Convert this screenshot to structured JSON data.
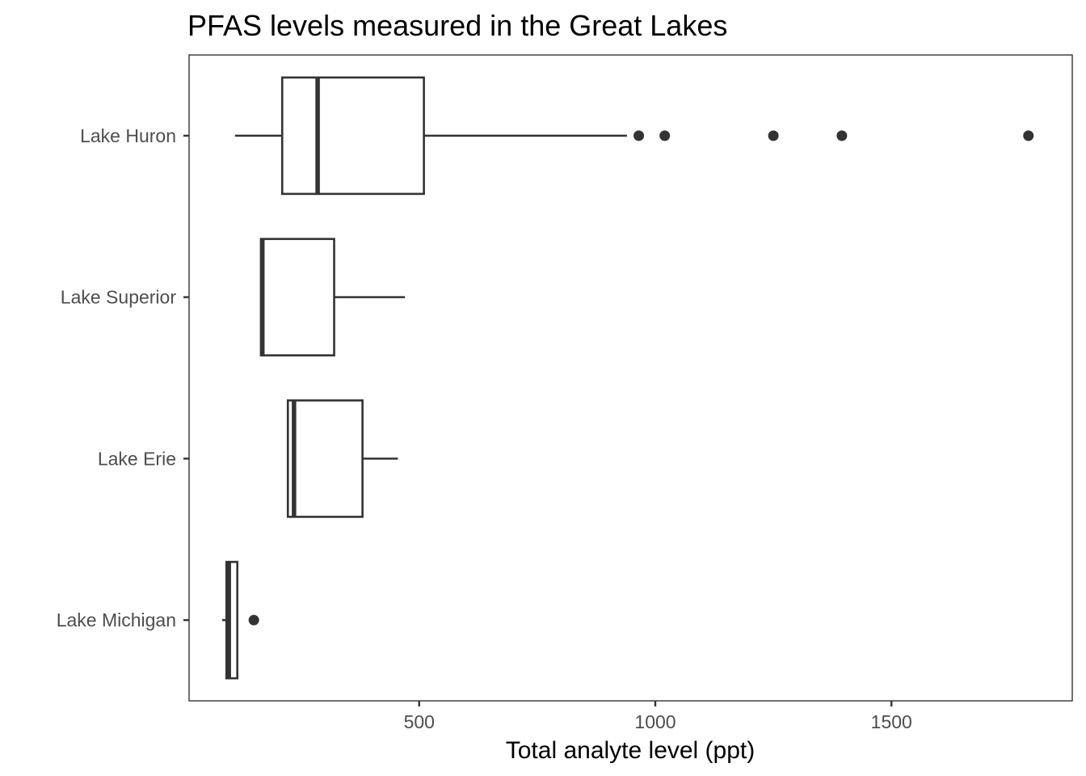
{
  "chart_data": {
    "type": "boxplot",
    "orientation": "horizontal",
    "title": "PFAS levels measured in the Great Lakes",
    "xlabel": "Total analyte level (ppt)",
    "ylabel": "",
    "xlim": [
      0,
      1800
    ],
    "xticks": [
      500,
      1000,
      1500
    ],
    "xtick_labels": [
      "500",
      "1000",
      "1500"
    ],
    "grid": false,
    "legend": "none",
    "categories": [
      "Lake Huron",
      "Lake Superior",
      "Lake Erie",
      "Lake Michigan"
    ],
    "series": [
      {
        "category": "Lake Huron",
        "min": 110,
        "q1": 210,
        "median": 285,
        "q3": 510,
        "max": 940,
        "outliers": [
          965,
          1020,
          1250,
          1395,
          1790
        ]
      },
      {
        "category": "Lake Superior",
        "min": 165,
        "q1": 165,
        "median": 168,
        "q3": 320,
        "max": 470,
        "outliers": []
      },
      {
        "category": "Lake Erie",
        "min": 222,
        "q1": 222,
        "median": 235,
        "q3": 380,
        "max": 455,
        "outliers": []
      },
      {
        "category": "Lake Michigan",
        "min": 83,
        "q1": 92,
        "median": 97,
        "q3": 115,
        "max": 115,
        "outliers": [
          150
        ]
      }
    ]
  }
}
